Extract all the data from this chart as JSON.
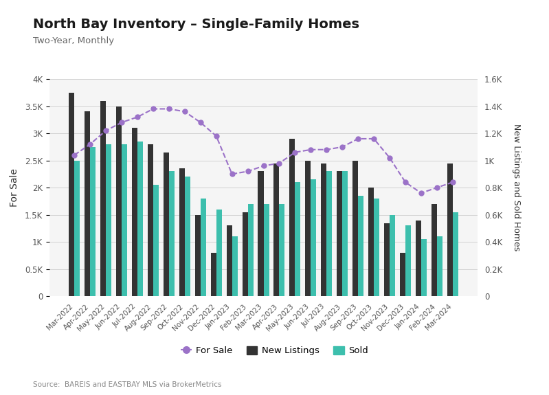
{
  "title": "North Bay Inventory – Single-Family Homes",
  "subtitle": "Two-Year, Monthly",
  "source": "Source:  BAREIS and EASTBAY MLS via BrokerMetrics",
  "ylabel_left": "For Sale",
  "ylabel_right": "New Listings and Sold Homes",
  "categories": [
    "Mar-2022",
    "Apr-2022",
    "May-2022",
    "Jun-2022",
    "Jul-2022",
    "Aug-2022",
    "Sep-2022",
    "Oct-2022",
    "Nov-2022",
    "Dec-2022",
    "Jan-2023",
    "Feb-2023",
    "Mar-2023",
    "Apr-2023",
    "May-2023",
    "Jun-2023",
    "Jul-2023",
    "Aug-2023",
    "Sep-2023",
    "Oct-2023",
    "Nov-2023",
    "Dec-2023",
    "Jan-2024",
    "Feb-2024",
    "Mar-2024"
  ],
  "new_listings": [
    3750,
    3400,
    3600,
    3500,
    3100,
    2800,
    2650,
    2350,
    1500,
    800,
    1300,
    1550,
    2300,
    2450,
    2900,
    2500,
    2450,
    2300,
    2500,
    2000,
    1350,
    800,
    1400,
    1700,
    2450
  ],
  "sold": [
    2500,
    2750,
    2800,
    2800,
    2850,
    2050,
    2300,
    2200,
    1800,
    1600,
    1100,
    1700,
    1700,
    1700,
    2100,
    2150,
    2300,
    2300,
    1850,
    1800,
    1500,
    1300,
    1050,
    1100,
    1550
  ],
  "for_sale": [
    2600,
    2800,
    3050,
    3200,
    3300,
    3450,
    3450,
    3400,
    3200,
    2950,
    2250,
    2300,
    2400,
    2450,
    2650,
    2700,
    2700,
    2750,
    2900,
    2900,
    2550,
    2100,
    1900,
    2000,
    2100
  ],
  "bar_dark_color": "#333333",
  "bar_teal_color": "#3dbfad",
  "line_color": "#9b72c8",
  "background_color": "#ffffff",
  "chart_bg_color": "#f5f5f5",
  "left_ylim": [
    0,
    4000
  ],
  "right_ylim": [
    0,
    1600
  ],
  "left_yticks": [
    0,
    500,
    1000,
    1500,
    2000,
    2500,
    3000,
    3500,
    4000
  ],
  "right_yticks": [
    0,
    200,
    400,
    600,
    800,
    1000,
    1200,
    1400,
    1600
  ],
  "left_yticklabels": [
    "0",
    "0.5K",
    "1K",
    "1.5K",
    "2K",
    "2.5K",
    "3K",
    "3.5K",
    "4K"
  ],
  "right_yticklabels": [
    "0",
    "0.2K",
    "0.4K",
    "0.6K",
    "0.8K",
    "1K",
    "1.2K",
    "1.4K",
    "1.6K"
  ],
  "scale_factor": 2.5
}
